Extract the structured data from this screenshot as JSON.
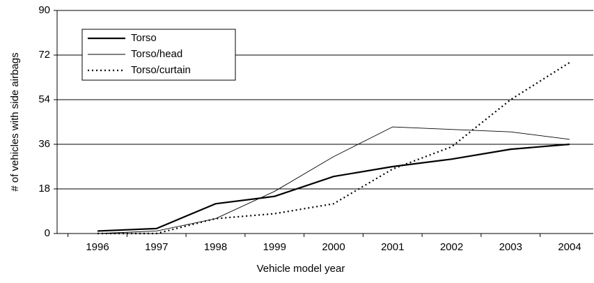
{
  "chart_data": {
    "type": "line",
    "xlabel": "Vehicle model year",
    "ylabel": "# of vehicles with side airbags",
    "categories": [
      "1996",
      "1997",
      "1998",
      "1999",
      "2000",
      "2001",
      "2002",
      "2003",
      "2004"
    ],
    "series": [
      {
        "name": "Torso",
        "color": "#000000",
        "line_style": "thick",
        "values": [
          1,
          2,
          12,
          15,
          23,
          27,
          30,
          34,
          36
        ]
      },
      {
        "name": "Torso/head",
        "color": "#000000",
        "line_style": "thin",
        "values": [
          0,
          1,
          6,
          17,
          31,
          43,
          42,
          41,
          38
        ]
      },
      {
        "name": "Torso/curtain",
        "color": "#000000",
        "line_style": "dotted",
        "values": [
          0,
          0,
          6,
          8,
          12,
          26,
          35,
          54,
          69
        ]
      }
    ],
    "ylim": [
      0,
      90
    ],
    "yticks": [
      0,
      18,
      36,
      54,
      72,
      90
    ],
    "grid": true,
    "legend": "upper left"
  }
}
